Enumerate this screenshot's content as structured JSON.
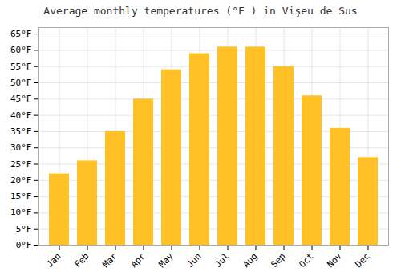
{
  "chart_data": {
    "type": "bar",
    "title": "Average monthly temperatures (°F ) in Vişeu de Sus",
    "categories": [
      "Jan",
      "Feb",
      "Mar",
      "Apr",
      "May",
      "Jun",
      "Jul",
      "Aug",
      "Sep",
      "Oct",
      "Nov",
      "Dec"
    ],
    "values": [
      22,
      26,
      35,
      45,
      54,
      59,
      61,
      61,
      55,
      46,
      36,
      27
    ],
    "color": "#FFC125",
    "ylim": [
      0,
      67
    ],
    "yticks": [
      {
        "value": 0,
        "label": "0°F"
      },
      {
        "value": 5,
        "label": "5°F"
      },
      {
        "value": 10,
        "label": "10°F"
      },
      {
        "value": 15,
        "label": "15°F"
      },
      {
        "value": 20,
        "label": "20°F"
      },
      {
        "value": 25,
        "label": "25°F"
      },
      {
        "value": 30,
        "label": "30°F"
      },
      {
        "value": 35,
        "label": "35°F"
      },
      {
        "value": 40,
        "label": "40°F"
      },
      {
        "value": 45,
        "label": "45°F"
      },
      {
        "value": 50,
        "label": "50°F"
      },
      {
        "value": 55,
        "label": "55°F"
      },
      {
        "value": 60,
        "label": "60°F"
      },
      {
        "value": 65,
        "label": "65°F"
      }
    ],
    "grid": true
  }
}
